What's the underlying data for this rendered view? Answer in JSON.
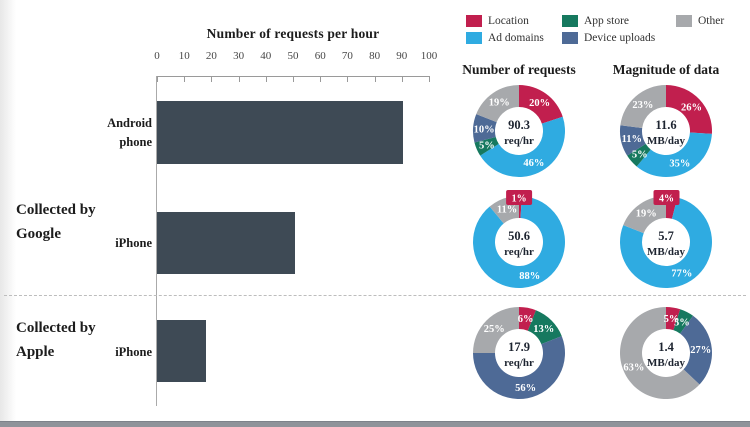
{
  "series_colors": {
    "Location": "#c11f4e",
    "Ad domains": "#2fabe1",
    "App store": "#16795f",
    "Device uploads": "#4e6a96",
    "Other": "#a7a9ac"
  },
  "legend": {
    "items": [
      {
        "label": "Location",
        "color": "#c11f4e"
      },
      {
        "label": "App store",
        "color": "#16795f"
      },
      {
        "label": "Other",
        "color": "#a7a9ac"
      },
      {
        "label": "Ad domains",
        "color": "#2fabe1"
      },
      {
        "label": "Device uploads",
        "color": "#4e6a96"
      }
    ]
  },
  "sections": {
    "google": "Collected by Google",
    "apple": "Collected by Apple"
  },
  "columns": {
    "requests": "Number of requests",
    "magnitude": "Magnitude of data"
  },
  "chart_data": [
    {
      "type": "bar",
      "orientation": "horizontal",
      "title": "Number of requests per hour",
      "categories": [
        "Android phone",
        "iPhone",
        "iPhone"
      ],
      "groups": [
        "Collected by Google",
        "Collected by Google",
        "Collected by Apple"
      ],
      "values": [
        90.3,
        50.6,
        17.9
      ],
      "xlim": [
        0,
        100
      ],
      "xticks": [
        0,
        10,
        20,
        30,
        40,
        50,
        60,
        70,
        80,
        90,
        100
      ],
      "bar_color": "#3e4a55"
    },
    {
      "type": "pie",
      "subtype": "donut",
      "group": "Collected by Google",
      "device": "Android phone",
      "column": "Number of requests",
      "center_value": "90.3",
      "center_unit": "req/hr",
      "labels": [
        "Location",
        "Ad domains",
        "App store",
        "Device uploads",
        "Other"
      ],
      "values": [
        20,
        46,
        5,
        10,
        19
      ]
    },
    {
      "type": "pie",
      "subtype": "donut",
      "group": "Collected by Google",
      "device": "Android phone",
      "column": "Magnitude of data",
      "center_value": "11.6",
      "center_unit": "MB/day",
      "labels": [
        "Location",
        "Ad domains",
        "App store",
        "Device uploads",
        "Other"
      ],
      "values": [
        26,
        35,
        5,
        11,
        23
      ]
    },
    {
      "type": "pie",
      "subtype": "donut",
      "group": "Collected by Google",
      "device": "iPhone",
      "column": "Number of requests",
      "center_value": "50.6",
      "center_unit": "req/hr",
      "labels": [
        "Location",
        "Ad domains",
        "Other"
      ],
      "values": [
        1,
        88,
        11
      ]
    },
    {
      "type": "pie",
      "subtype": "donut",
      "group": "Collected by Google",
      "device": "iPhone",
      "column": "Magnitude of data",
      "center_value": "5.7",
      "center_unit": "MB/day",
      "labels": [
        "Location",
        "Ad domains",
        "Other"
      ],
      "values": [
        4,
        77,
        19
      ]
    },
    {
      "type": "pie",
      "subtype": "donut",
      "group": "Collected by Apple",
      "device": "iPhone",
      "column": "Number of requests",
      "center_value": "17.9",
      "center_unit": "req/hr",
      "labels": [
        "Location",
        "App store",
        "Device uploads",
        "Other"
      ],
      "values": [
        6,
        13,
        56,
        25
      ]
    },
    {
      "type": "pie",
      "subtype": "donut",
      "group": "Collected by Apple",
      "device": "iPhone",
      "column": "Magnitude of data",
      "center_value": "1.4",
      "center_unit": "MB/day",
      "labels": [
        "Location",
        "App store",
        "Device uploads",
        "Other"
      ],
      "values": [
        5,
        5,
        27,
        63
      ]
    }
  ]
}
